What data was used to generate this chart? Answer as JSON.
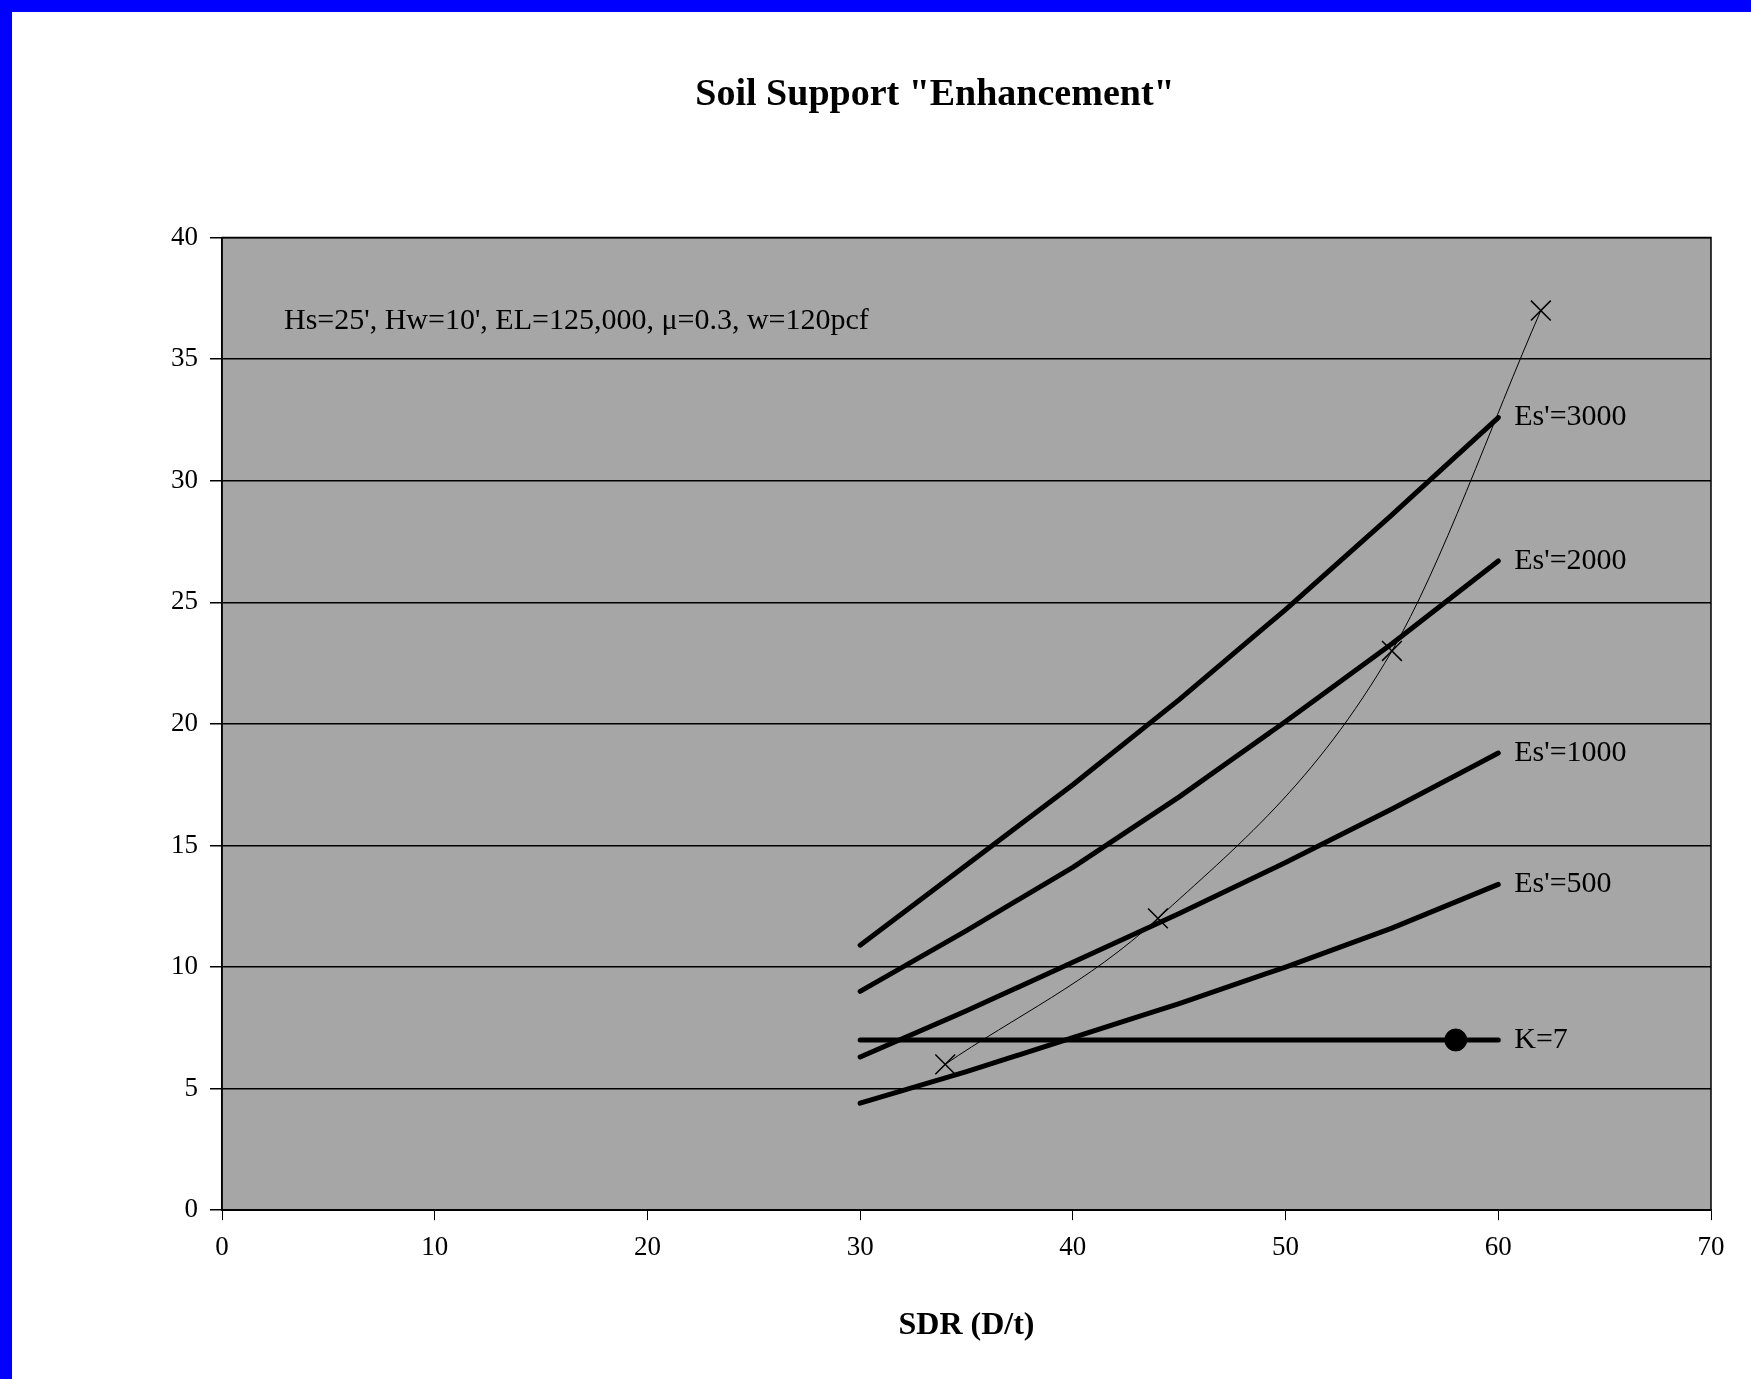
{
  "chart_data": {
    "type": "line",
    "title": "Soil Support \"Enhancement\"",
    "xlabel": "SDR (D/t)",
    "xlim": [
      0,
      70
    ],
    "xticks": [
      0,
      10,
      20,
      30,
      40,
      50,
      60,
      70
    ],
    "ylim": [
      0,
      40
    ],
    "yticks": [
      0,
      5,
      10,
      15,
      20,
      25,
      30,
      35,
      40
    ],
    "grid": "y",
    "legend": false,
    "marker": "none",
    "line_style": "solid",
    "annotations": [
      "Hs=25', Hw=10', EL=125,000, μ=0.3, w=120pcf"
    ],
    "series": [
      {
        "name": "Es'=3000",
        "color": "#000000",
        "x": [
          30,
          35,
          40,
          45,
          50,
          55,
          60
        ],
        "values": [
          10.9,
          14.2,
          17.5,
          21.0,
          24.7,
          28.6,
          32.6
        ]
      },
      {
        "name": "Es'=2000",
        "color": "#000000",
        "x": [
          30,
          35,
          40,
          45,
          50,
          55,
          60
        ],
        "values": [
          9.0,
          11.5,
          14.1,
          17.0,
          20.1,
          23.3,
          26.7
        ]
      },
      {
        "name": "Es'=1000",
        "color": "#000000",
        "x": [
          30,
          35,
          40,
          45,
          50,
          55,
          60
        ],
        "values": [
          6.3,
          8.2,
          10.2,
          12.2,
          14.3,
          16.5,
          18.8
        ]
      },
      {
        "name": "Es'=500",
        "color": "#000000",
        "x": [
          30,
          35,
          40,
          45,
          50,
          55,
          60
        ],
        "values": [
          4.4,
          5.7,
          7.1,
          8.5,
          10.0,
          11.6,
          13.4
        ]
      },
      {
        "name": "K=7",
        "color": "#000000",
        "x": [
          30,
          60
        ],
        "values": [
          7,
          7
        ]
      },
      {
        "color": "#000000",
        "marker": "circle",
        "x": [
          58
        ],
        "values": [
          7
        ]
      },
      {
        "color": "#000000",
        "marker": "cross",
        "x": [
          34,
          44,
          55,
          62
        ],
        "values": [
          6,
          12,
          23,
          37
        ]
      }
    ]
  }
}
